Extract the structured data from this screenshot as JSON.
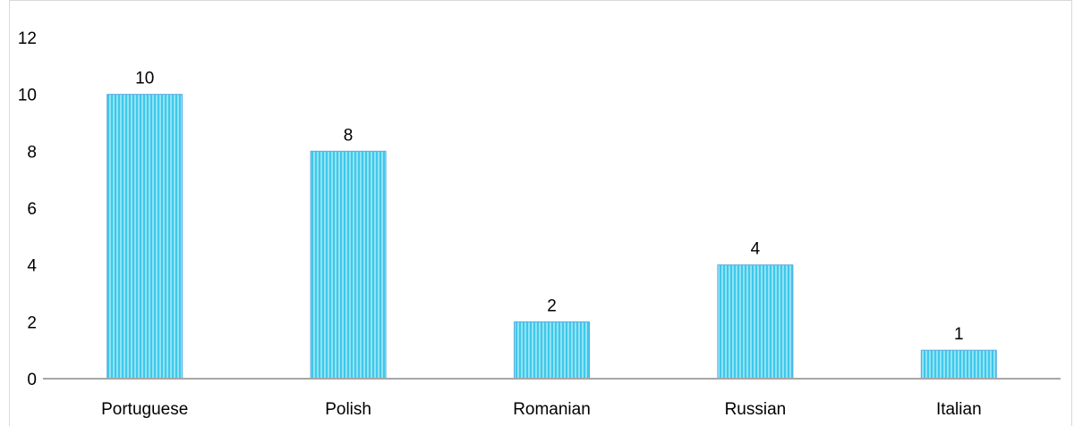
{
  "chart_data": {
    "type": "bar",
    "categories": [
      "Portuguese",
      "Polish",
      "Romanian",
      "Russian",
      "Italian"
    ],
    "values": [
      10,
      8,
      2,
      4,
      1
    ],
    "data_labels": [
      "10",
      "8",
      "2",
      "4",
      "1"
    ],
    "title": "",
    "xlabel": "",
    "ylabel": "",
    "ylim": [
      0,
      12
    ],
    "yticks": [
      "0",
      "2",
      "4",
      "6",
      "8",
      "10",
      "12"
    ],
    "grid": false,
    "legend": "none",
    "colors": {
      "bar_fill": "#8fe3f5",
      "bar_stripe": "#3fc8ea",
      "bar_edge": "#5aa9e0",
      "axis": "#a6a6a6"
    }
  }
}
